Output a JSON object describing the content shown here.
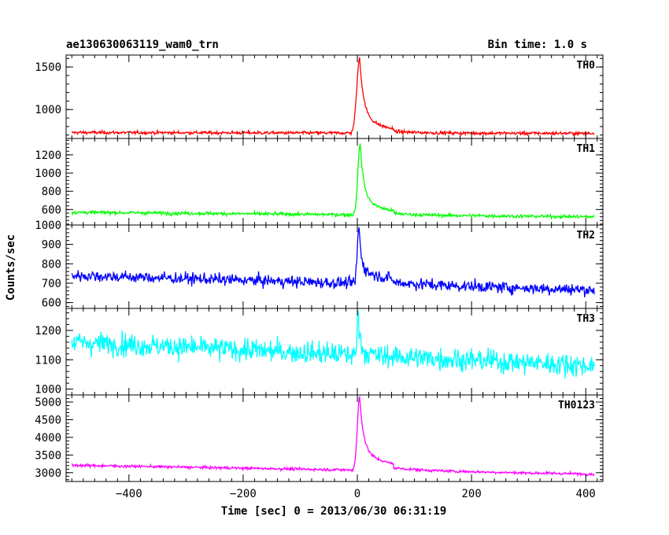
{
  "header": {
    "object_name": "ae130630063119_wam0_trn",
    "bin_time": "Bin time: 1.0 s"
  },
  "chart_data": {
    "type": "line",
    "xlabel": "Time [sec] 0 = 2013/06/30 06:31:19",
    "ylabel": "Counts/sec",
    "xlim": [
      -510,
      430
    ],
    "x_ticks": [
      -400,
      -200,
      0,
      200,
      400
    ],
    "x_tick_labels": [
      "−400",
      "−200",
      "0",
      "200",
      "400"
    ],
    "x_range": [
      -500,
      415
    ],
    "panels": [
      {
        "name": "TH0",
        "color": "#ff0000",
        "ylim": [
          660,
          1640
        ],
        "y_ticks": [
          1000,
          1500
        ],
        "y_tick_labels": [
          "1000",
          "1500"
        ],
        "baseline": [
          [
            -500,
            730
          ],
          [
            415,
            720
          ]
        ],
        "noise": 22,
        "burst": {
          "peak_t": 4,
          "peak": 1600,
          "rise": 5,
          "decay": 7,
          "tail": 40
        }
      },
      {
        "name": "TH1",
        "color": "#00ff00",
        "ylim": [
          430,
          1380
        ],
        "y_ticks": [
          600,
          800,
          1000,
          1200
        ],
        "y_tick_labels": [
          "600",
          "800",
          "1000",
          "1200"
        ],
        "baseline": [
          [
            -500,
            570
          ],
          [
            415,
            520
          ]
        ],
        "noise": 22,
        "burst": {
          "peak_t": 5,
          "peak": 1330,
          "rise": 4,
          "decay": 6,
          "tail": 40
        }
      },
      {
        "name": "TH2",
        "color": "#0000ff",
        "ylim": [
          570,
          1000
        ],
        "y_ticks": [
          600,
          700,
          800,
          900,
          1000
        ],
        "y_tick_labels": [
          "600",
          "700",
          "800",
          "900",
          "1000"
        ],
        "baseline": [
          [
            -500,
            740
          ],
          [
            415,
            665
          ]
        ],
        "noise": 35,
        "burst": {
          "peak_t": 3,
          "peak": 990,
          "rise": 3,
          "decay": 4,
          "tail": 60
        }
      },
      {
        "name": "TH3",
        "color": "#00ffff",
        "ylim": [
          980,
          1275
        ],
        "y_ticks": [
          1000,
          1100,
          1200
        ],
        "y_tick_labels": [
          "1000",
          "1100",
          "1200"
        ],
        "baseline": [
          [
            -500,
            1160
          ],
          [
            415,
            1080
          ]
        ],
        "noise": 45,
        "burst": {
          "peak_t": 2,
          "peak": 1270,
          "rise": 2,
          "decay": 2,
          "tail": 10
        }
      },
      {
        "name": "TH0123",
        "color": "#ff00ff",
        "ylim": [
          2750,
          5200
        ],
        "y_ticks": [
          3000,
          3500,
          4000,
          4500,
          5000
        ],
        "y_tick_labels": [
          "3000",
          "3500",
          "4000",
          "4500",
          "5000"
        ],
        "baseline": [
          [
            -500,
            3210
          ],
          [
            415,
            2960
          ]
        ],
        "noise": 45,
        "burst": {
          "peak_t": 4,
          "peak": 5150,
          "rise": 4,
          "decay": 7,
          "tail": 60
        }
      }
    ]
  }
}
